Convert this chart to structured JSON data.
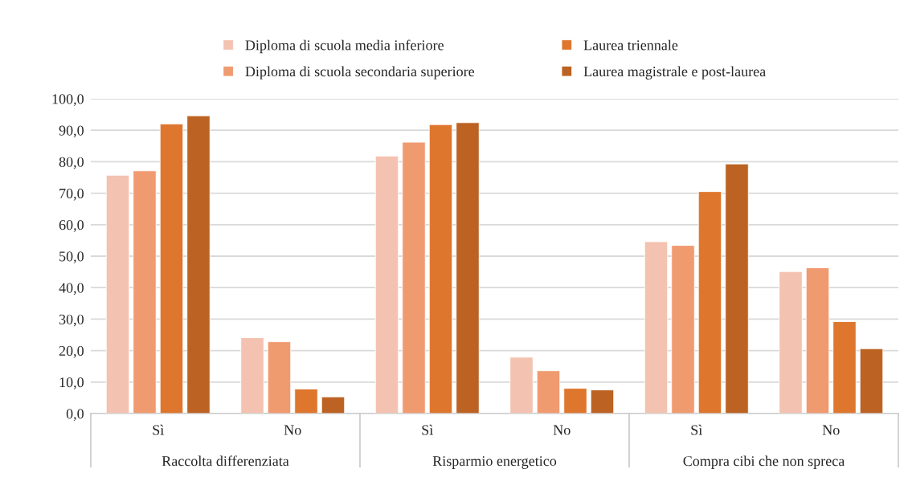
{
  "chart_data": {
    "type": "bar",
    "categories": [
      "Sì",
      "No",
      "Sì",
      "No",
      "Sì",
      "No"
    ],
    "series": [
      {
        "name": "Diploma di scuola media inferiore",
        "color": "#f4c2b0",
        "values": [
          75.7,
          24.1,
          81.8,
          17.9,
          54.6,
          45.1
        ]
      },
      {
        "name": "Diploma di scuola secondaria superiore",
        "color": "#f09a70",
        "values": [
          77.1,
          22.8,
          86.2,
          13.6,
          53.4,
          46.3
        ]
      },
      {
        "name": "Laurea triennale",
        "color": "#de762e",
        "values": [
          92.0,
          7.8,
          91.8,
          8.0,
          70.5,
          29.2
        ]
      },
      {
        "name": "Laurea magistrale e post-laurea",
        "color": "#bc6223",
        "values": [
          94.6,
          5.3,
          92.4,
          7.5,
          79.3,
          20.6
        ]
      }
    ],
    "annotations": [
      "Raccolta differenziata",
      "Risparmio energetico",
      "Compra cibi che non spreca"
    ],
    "ylim": [
      0,
      100
    ],
    "yticks": [
      {
        "value": 0,
        "label": "0,0"
      },
      {
        "value": 10,
        "label": "10,0"
      },
      {
        "value": 20,
        "label": "20,0"
      },
      {
        "value": 30,
        "label": "30,0"
      },
      {
        "value": 40,
        "label": "40,0"
      },
      {
        "value": 50,
        "label": "50,0"
      },
      {
        "value": 60,
        "label": "60,0"
      },
      {
        "value": 70,
        "label": "70,0"
      },
      {
        "value": 80,
        "label": "80,0"
      },
      {
        "value": 90,
        "label": "90,0"
      },
      {
        "value": 100,
        "label": "100,0"
      }
    ],
    "grid": "y",
    "legend": "top"
  }
}
